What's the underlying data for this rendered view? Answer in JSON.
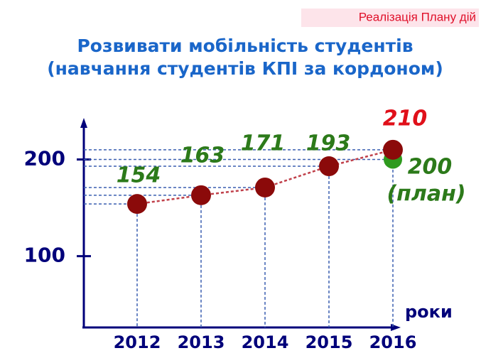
{
  "tag": "Реалізація Плану дій",
  "chart_data": {
    "type": "line",
    "title": [
      "Розвивати мобільність студентів",
      "(навчання студентів КПІ за кордоном)"
    ],
    "x_label": "роки",
    "categories": [
      "2012",
      "2013",
      "2014",
      "2015",
      "2016"
    ],
    "values": [
      154,
      163,
      171,
      193,
      210
    ],
    "color": "#8b0a0a",
    "plan_value": 200,
    "plan_label": "(план)",
    "plan_color": "#2e9a1e",
    "ylim": [
      30,
      240
    ],
    "yticks": [
      100,
      200
    ],
    "grid": true
  }
}
